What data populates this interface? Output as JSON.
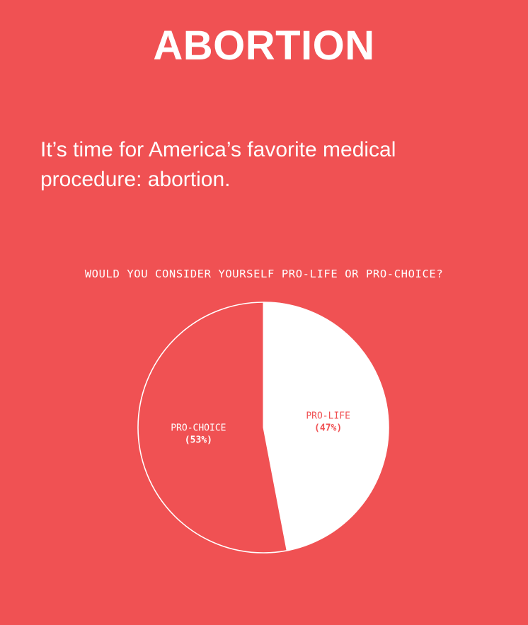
{
  "page": {
    "title": "ABORTION",
    "intro": "It’s time for America’s favorite medical procedure: abortion."
  },
  "colors": {
    "background": "#f05153",
    "white": "#ffffff"
  },
  "chart_data": {
    "type": "pie",
    "title": "WOULD YOU CONSIDER YOURSELF PRO-LIFE OR PRO-CHOICE?",
    "slices": [
      {
        "label": "PRO-LIFE",
        "value": 47,
        "pct_label": "(47%)"
      },
      {
        "label": "PRO-CHOICE",
        "value": 53,
        "pct_label": "(53%)"
      }
    ],
    "start": "12 o'clock",
    "direction": "clockwise"
  }
}
